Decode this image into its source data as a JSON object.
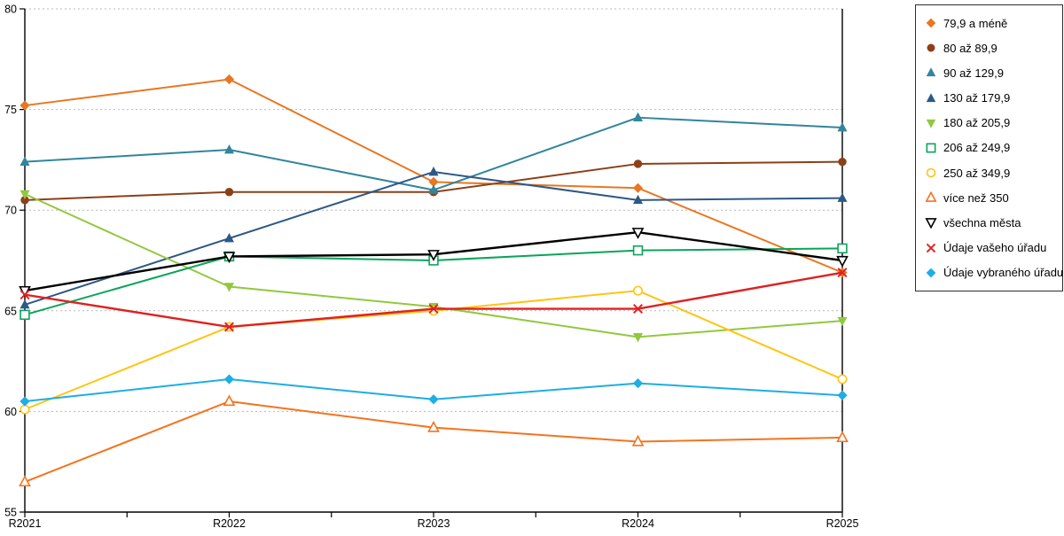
{
  "chart_data": {
    "type": "line",
    "title": "",
    "xlabel": "",
    "ylabel": "",
    "categories": [
      "R2021",
      "R2022",
      "R2023",
      "R2024",
      "R2025"
    ],
    "ylim": [
      55,
      80
    ],
    "yticks": [
      55,
      60,
      65,
      70,
      75,
      80
    ],
    "grid": "horizontal-dashed",
    "legend_position": "right",
    "series": [
      {
        "name": "79,9 a méně",
        "color": "#E87722",
        "marker": "diamond",
        "open": false,
        "line_width": 2,
        "values": [
          75.2,
          76.5,
          71.4,
          71.1,
          66.9
        ]
      },
      {
        "name": "80 až 89,9",
        "color": "#8C4018",
        "marker": "circle",
        "open": false,
        "line_width": 2,
        "values": [
          70.5,
          70.9,
          70.9,
          72.3,
          72.4
        ]
      },
      {
        "name": "90 až 129,9",
        "color": "#31859C",
        "marker": "triangle-up",
        "open": false,
        "line_width": 2,
        "values": [
          72.4,
          73.0,
          71.0,
          74.6,
          74.1
        ]
      },
      {
        "name": "130 až 179,9",
        "color": "#2D5986",
        "marker": "triangle-up",
        "open": false,
        "line_width": 2,
        "values": [
          65.3,
          68.6,
          71.9,
          70.5,
          70.6
        ]
      },
      {
        "name": "180 až 205,9",
        "color": "#92C83D",
        "marker": "triangle-down",
        "open": false,
        "line_width": 2,
        "values": [
          70.8,
          66.2,
          65.2,
          63.7,
          64.5
        ]
      },
      {
        "name": "206 až 249,9",
        "color": "#0BA45A",
        "marker": "square",
        "open": true,
        "line_width": 2,
        "values": [
          64.8,
          67.7,
          67.5,
          68.0,
          68.1
        ]
      },
      {
        "name": "250 až 349,9",
        "color": "#FFC414",
        "marker": "circle",
        "open": true,
        "line_width": 2,
        "values": [
          60.1,
          64.2,
          65.0,
          66.0,
          61.6
        ]
      },
      {
        "name": "více než 350",
        "color": "#F4731E",
        "marker": "triangle-up",
        "open": true,
        "line_width": 2,
        "values": [
          56.5,
          60.5,
          59.2,
          58.5,
          58.7
        ]
      },
      {
        "name": "všechna města",
        "color": "#000000",
        "marker": "triangle-down",
        "open": true,
        "line_width": 2.4,
        "values": [
          66.0,
          67.7,
          67.8,
          68.9,
          67.5
        ]
      },
      {
        "name": "Údaje vašeho úřadu",
        "color": "#E02020",
        "marker": "x",
        "open": true,
        "line_width": 2.4,
        "values": [
          65.8,
          64.2,
          65.1,
          65.1,
          66.9
        ]
      },
      {
        "name": "Údaje vybraného úřadu",
        "color": "#1EADE5",
        "marker": "diamond",
        "open": false,
        "line_width": 2,
        "values": [
          60.5,
          61.6,
          60.6,
          61.4,
          60.8
        ]
      }
    ]
  }
}
